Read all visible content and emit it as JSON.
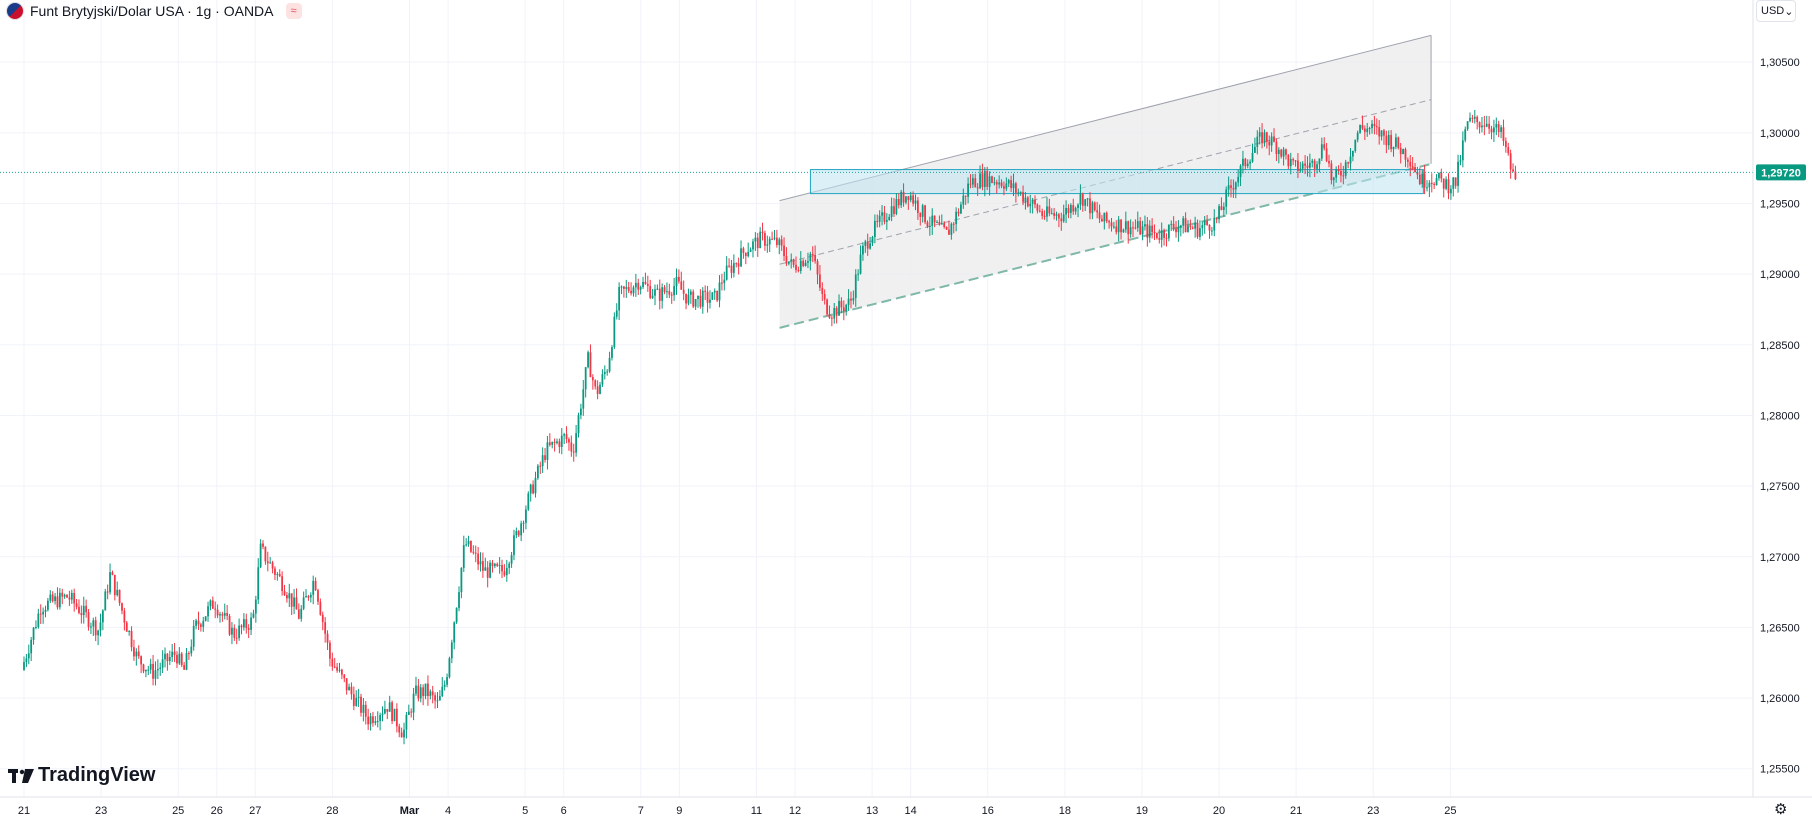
{
  "header": {
    "title": "Funt Brytyjski/Dolar USA · 1g · OANDA"
  },
  "currency_button": {
    "label": "USD"
  },
  "brand": {
    "logo_text": "TradingView"
  },
  "colors": {
    "up": "#089981",
    "down": "#f23645",
    "price_line": "#1aa39a",
    "zone_fill": "#bfe3f3",
    "zone_border": "#22a5c2",
    "channel_fill": "#ebebeb",
    "channel_line": "#9ea3ad",
    "grid": "#f0f3fa"
  },
  "chart_data": {
    "type": "candlestick",
    "symbol": "Funt Brytyjski/Dolar USA · 1g · OANDA",
    "x_ticks": [
      "21",
      "23",
      "25",
      "26",
      "27",
      "28",
      "Mar",
      "4",
      "5",
      "6",
      "7",
      "9",
      "11",
      "12",
      "13",
      "14",
      "16",
      "18",
      "19",
      "20",
      "21",
      "23",
      "25"
    ],
    "y_ticks": [
      "1,30500",
      "1,30000",
      "1,29500",
      "1,29000",
      "1,28500",
      "1,28000",
      "1,27500",
      "1,27000",
      "1,26500",
      "1,26000",
      "1,25500"
    ],
    "y_tick_values": [
      1.305,
      1.3,
      1.295,
      1.29,
      1.285,
      1.28,
      1.275,
      1.27,
      1.265,
      1.26,
      1.255
    ],
    "ylim": [
      1.253,
      1.3094
    ],
    "last_price": "1,29720",
    "last_price_value": 1.2972,
    "path_knots": [
      [
        0,
        1.262
      ],
      [
        0.5,
        1.2665
      ],
      [
        1.2,
        1.2672
      ],
      [
        2,
        1.2648
      ],
      [
        2.3,
        1.2688
      ],
      [
        3,
        1.2628
      ],
      [
        3.4,
        1.2618
      ],
      [
        4,
        1.2632
      ],
      [
        4.2,
        1.2618
      ],
      [
        4.5,
        1.265
      ],
      [
        5,
        1.2668
      ],
      [
        5.5,
        1.2645
      ],
      [
        6,
        1.2655
      ],
      [
        6.2,
        1.2705
      ],
      [
        6.8,
        1.268
      ],
      [
        7.2,
        1.2658
      ],
      [
        7.6,
        1.2685
      ],
      [
        8,
        1.2628
      ],
      [
        8.5,
        1.2605
      ],
      [
        9,
        1.2585
      ],
      [
        9.5,
        1.2595
      ],
      [
        9.9,
        1.2575
      ],
      [
        10.2,
        1.2603
      ],
      [
        10.5,
        1.2605
      ],
      [
        10.8,
        1.2595
      ],
      [
        11,
        1.2612
      ],
      [
        11.5,
        1.271
      ],
      [
        12,
        1.269
      ],
      [
        12.5,
        1.269
      ],
      [
        12.9,
        1.272
      ],
      [
        13.2,
        1.2745
      ],
      [
        13.6,
        1.2775
      ],
      [
        14.1,
        1.2785
      ],
      [
        14.3,
        1.2775
      ],
      [
        14.7,
        1.284
      ],
      [
        14.9,
        1.2815
      ],
      [
        15.2,
        1.2835
      ],
      [
        15.5,
        1.2885
      ],
      [
        16,
        1.2895
      ],
      [
        16.5,
        1.2885
      ],
      [
        17,
        1.2893
      ],
      [
        17.3,
        1.2882
      ],
      [
        18,
        1.2883
      ],
      [
        18.2,
        1.2898
      ],
      [
        18.8,
        1.2918
      ],
      [
        19.2,
        1.2925
      ],
      [
        19.6,
        1.2922
      ],
      [
        20,
        1.2905
      ],
      [
        20.5,
        1.2915
      ],
      [
        20.8,
        1.288
      ],
      [
        21,
        1.2873
      ],
      [
        21.5,
        1.288
      ],
      [
        21.8,
        1.2915
      ],
      [
        22,
        1.2927
      ],
      [
        22.5,
        1.2945
      ],
      [
        23,
        1.2958
      ],
      [
        23.5,
        1.2938
      ],
      [
        24,
        1.2928
      ],
      [
        24.3,
        1.2945
      ],
      [
        24.6,
        1.2965
      ],
      [
        25,
        1.2968
      ],
      [
        25.5,
        1.2965
      ],
      [
        26,
        1.2955
      ],
      [
        26.5,
        1.2942
      ],
      [
        27,
        1.2942
      ],
      [
        27.5,
        1.2955
      ],
      [
        28,
        1.2938
      ],
      [
        28.5,
        1.2935
      ],
      [
        29,
        1.2932
      ],
      [
        29.5,
        1.2928
      ],
      [
        30,
        1.2935
      ],
      [
        30.5,
        1.2932
      ],
      [
        31,
        1.2938
      ],
      [
        31.3,
        1.2958
      ],
      [
        31.8,
        1.2982
      ],
      [
        32.2,
        1.2998
      ],
      [
        32.6,
        1.299
      ],
      [
        33,
        1.2975
      ],
      [
        33.5,
        1.2978
      ],
      [
        33.8,
        1.2993
      ],
      [
        34,
        1.2965
      ],
      [
        34.3,
        1.2975
      ],
      [
        34.7,
        1.3003
      ],
      [
        35,
        1.3003
      ],
      [
        35.5,
        1.2995
      ],
      [
        36,
        1.2983
      ],
      [
        36.3,
        1.2966
      ],
      [
        36.6,
        1.2968
      ],
      [
        37,
        1.2963
      ],
      [
        37.2,
        1.2965
      ],
      [
        37.5,
        1.3007
      ],
      [
        38,
        1.3008
      ],
      [
        38.4,
        1.2998
      ],
      [
        38.7,
        1.2968
      ]
    ],
    "day_boundaries": [
      0,
      2,
      4,
      5,
      6,
      8,
      10,
      11,
      13,
      14,
      16,
      17,
      19,
      20,
      22,
      23,
      25,
      27,
      29,
      31,
      33,
      35,
      37
    ],
    "channel": {
      "upper": [
        [
          19.6,
          1.2952
        ],
        [
          36.5,
          1.3069
        ]
      ],
      "lower": [
        [
          19.6,
          1.2862
        ],
        [
          36.5,
          1.2978
        ]
      ],
      "start_x": 19.6,
      "end_x": 36.5
    },
    "support_zone": {
      "top": 1.2974,
      "bottom": 1.2957,
      "x_start": 20.4,
      "x_end": 36.3
    }
  }
}
